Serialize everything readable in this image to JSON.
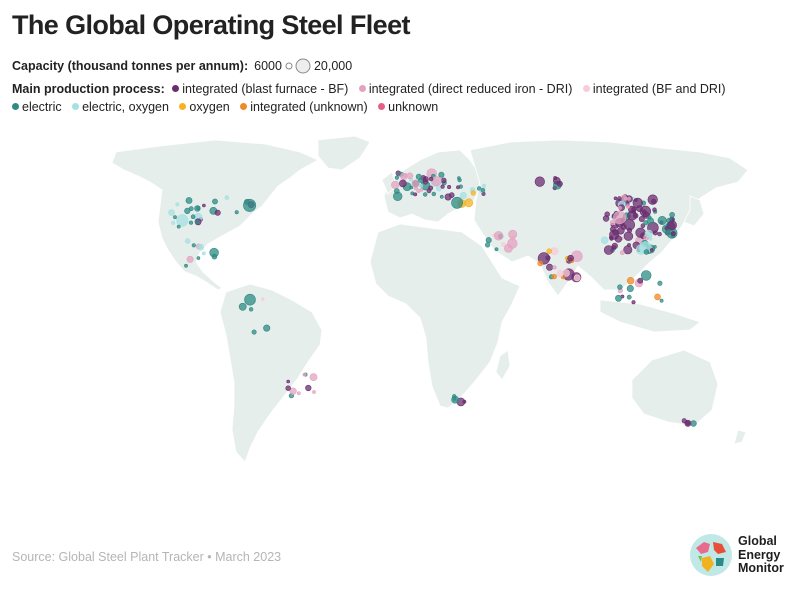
{
  "title": "The Global Operating Steel Fleet",
  "size_legend": {
    "label": "Capacity (thousand tonnes per annum):",
    "min_value": "6000",
    "max_value": "20,000"
  },
  "process_legend": {
    "label": "Main production process:",
    "items": [
      {
        "label": "integrated (blast furnace - BF)",
        "color": "#6b2d6f"
      },
      {
        "label": "integrated (direct reduced iron - DRI)",
        "color": "#e3a3c0"
      },
      {
        "label": "integrated (BF and DRI)",
        "color": "#f7cbd8"
      },
      {
        "label": "electric",
        "color": "#2e8b84"
      },
      {
        "label": "electric, oxygen",
        "color": "#a6e0e1"
      },
      {
        "label": "oxygen",
        "color": "#f4b31f"
      },
      {
        "label": "integrated (unknown)",
        "color": "#ef8a26"
      },
      {
        "label": "unknown",
        "color": "#e85f86"
      }
    ]
  },
  "map": {
    "land_color": "#e6eeec",
    "border_color": "#ffffff"
  },
  "source": "Source: Global Steel Plant Tracker • March 2023",
  "logo": {
    "line1": "Global",
    "line2": "Energy",
    "line3": "Monitor"
  }
}
